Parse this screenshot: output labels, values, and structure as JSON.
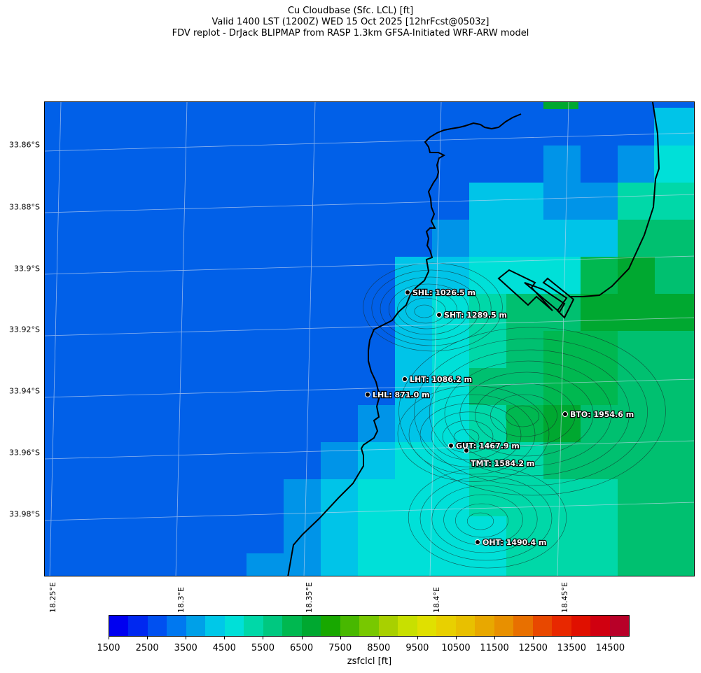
{
  "header": {
    "title_line1": "Cu Cloudbase (Sfc. LCL) [ft]",
    "title_line2": "Valid 1400 LST (1200Z) WED 15 Oct 2025 [12hrFcst@0503z]",
    "title_line3": "FDV replot - DrJack BLIPMAP from RASP 1.3km GFSA-Initiated WRF-ARW model"
  },
  "map": {
    "lat_labels": [
      "33.86°S",
      "33.88°S",
      "33.9°S",
      "33.92°S",
      "33.94°S",
      "33.96°S",
      "33.98°S"
    ],
    "lon_labels": [
      "18.25°E",
      "18.3°E",
      "18.35°E",
      "18.4°E",
      "18.45°E"
    ],
    "stations": [
      {
        "code": "SHL",
        "label": "SHL: 1026.5 m"
      },
      {
        "code": "SHT",
        "label": "SHT: 1289.5 m"
      },
      {
        "code": "LHT",
        "label": "LHT: 1086.2 m"
      },
      {
        "code": "LHL",
        "label": "LHL: 871.0 m"
      },
      {
        "code": "BTO",
        "label": "BTO: 1954.6 m"
      },
      {
        "code": "GUT",
        "label": "GUT: 1467.9 m"
      },
      {
        "code": "TMT",
        "label": "TMT: 1584.2 m"
      },
      {
        "code": "OHT",
        "label": "OHT: 1490.4 m"
      }
    ]
  },
  "colorbar": {
    "label": "zsfclcl [ft]",
    "tick_labels": [
      "1500",
      "2500",
      "3500",
      "4500",
      "5500",
      "6500",
      "7500",
      "8500",
      "9500",
      "10500",
      "11500",
      "12500",
      "13500",
      "14500"
    ],
    "colors": [
      "#0000f0",
      "#0028f0",
      "#0050f0",
      "#0078f0",
      "#00a0e8",
      "#00c8e8",
      "#00e0d8",
      "#00d8a8",
      "#00c880",
      "#00b850",
      "#00a830",
      "#18a800",
      "#48b800",
      "#78c800",
      "#a8d000",
      "#c8e000",
      "#e0e000",
      "#e8d000",
      "#e8c000",
      "#e8a800",
      "#e89000",
      "#e87000",
      "#e84800",
      "#e82800",
      "#e01000",
      "#d00010",
      "#b80028"
    ],
    "map_palette": {
      "deep_blue": "#0000f0",
      "blue": "#0160e8",
      "mid_blue": "#0094e8",
      "cyan": "#00c4e8",
      "turquoise": "#00e0d8",
      "aqua_green": "#00d8a8",
      "green": "#00c070",
      "strong_green": "#00b850",
      "dark_green": "#00a830"
    }
  }
}
